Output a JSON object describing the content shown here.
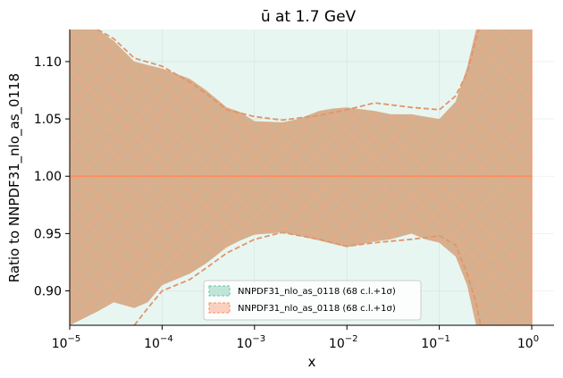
{
  "chart_data": {
    "type": "area",
    "title": "ū at 1.7 GeV",
    "xlabel": "x",
    "ylabel": "Ratio to NNPDF31_nlo_as_0118",
    "xscale": "log",
    "xlim": [
      1e-05,
      1.0
    ],
    "ylim": [
      0.87,
      1.128
    ],
    "x_ticks": [
      {
        "value": 1e-05,
        "base": "10",
        "exp": "−5"
      },
      {
        "value": 0.0001,
        "base": "10",
        "exp": "−4"
      },
      {
        "value": 0.001,
        "base": "10",
        "exp": "−3"
      },
      {
        "value": 0.01,
        "base": "10",
        "exp": "−2"
      },
      {
        "value": 0.1,
        "base": "10",
        "exp": "−1"
      },
      {
        "value": 1.0,
        "base": "10",
        "exp": "0"
      }
    ],
    "y_ticks": [
      "0.90",
      "0.95",
      "1.00",
      "1.05",
      "1.10"
    ],
    "y_tick_values": [
      0.9,
      0.95,
      1.0,
      1.05,
      1.1
    ],
    "grid": true,
    "legend_position": "lower-center",
    "series": [
      {
        "name": "NNPDF31_nlo_as_0118 (68 c.l.+1σ)",
        "color": "#66c2a5",
        "central": 1.0,
        "band_points": [
          {
            "x": 1e-05,
            "upper": 1.128,
            "lower": 0.87
          },
          {
            "x": 0.0001,
            "upper": 1.128,
            "lower": 0.87
          },
          {
            "x": 1.0,
            "upper": 1.128,
            "lower": 0.87
          }
        ],
        "note_hidden_behind": true
      },
      {
        "name": "NNPDF31_nlo_as_0118 (68 c.l.+1σ)",
        "color": "#fc8d62",
        "central": 1.0,
        "band_points": [
          {
            "x": 1e-05,
            "upper": 1.128,
            "lower": 0.87
          },
          {
            "x": 2e-05,
            "upper": 1.128,
            "lower": 0.882
          },
          {
            "x": 3e-05,
            "upper": 1.118,
            "lower": 0.89
          },
          {
            "x": 5e-05,
            "upper": 1.1,
            "lower": 0.885
          },
          {
            "x": 7e-05,
            "upper": 1.097,
            "lower": 0.89
          },
          {
            "x": 0.0001,
            "upper": 1.094,
            "lower": 0.905
          },
          {
            "x": 0.0002,
            "upper": 1.085,
            "lower": 0.915
          },
          {
            "x": 0.0003,
            "upper": 1.075,
            "lower": 0.924
          },
          {
            "x": 0.0005,
            "upper": 1.06,
            "lower": 0.938
          },
          {
            "x": 0.0007,
            "upper": 1.056,
            "lower": 0.944
          },
          {
            "x": 0.001,
            "upper": 1.048,
            "lower": 0.949
          },
          {
            "x": 0.002,
            "upper": 1.047,
            "lower": 0.951
          },
          {
            "x": 0.003,
            "upper": 1.05,
            "lower": 0.948
          },
          {
            "x": 0.005,
            "upper": 1.057,
            "lower": 0.944
          },
          {
            "x": 0.007,
            "upper": 1.059,
            "lower": 0.941
          },
          {
            "x": 0.01,
            "upper": 1.06,
            "lower": 0.938
          },
          {
            "x": 0.02,
            "upper": 1.057,
            "lower": 0.943
          },
          {
            "x": 0.03,
            "upper": 1.054,
            "lower": 0.945
          },
          {
            "x": 0.05,
            "upper": 1.054,
            "lower": 0.95
          },
          {
            "x": 0.07,
            "upper": 1.052,
            "lower": 0.945
          },
          {
            "x": 0.1,
            "upper": 1.05,
            "lower": 0.942
          },
          {
            "x": 0.15,
            "upper": 1.065,
            "lower": 0.93
          },
          {
            "x": 0.2,
            "upper": 1.095,
            "lower": 0.905
          },
          {
            "x": 0.25,
            "upper": 1.128,
            "lower": 0.87
          },
          {
            "x": 1.0,
            "upper": 1.128,
            "lower": 0.87
          }
        ],
        "dashed_upper": [
          {
            "x": 2e-05,
            "y": 1.128
          },
          {
            "x": 3e-05,
            "y": 1.12
          },
          {
            "x": 5e-05,
            "y": 1.103
          },
          {
            "x": 0.0001,
            "y": 1.096
          },
          {
            "x": 0.0002,
            "y": 1.082
          },
          {
            "x": 0.0003,
            "y": 1.072
          },
          {
            "x": 0.0005,
            "y": 1.058
          },
          {
            "x": 0.001,
            "y": 1.052
          },
          {
            "x": 0.002,
            "y": 1.049
          },
          {
            "x": 0.005,
            "y": 1.053
          },
          {
            "x": 0.01,
            "y": 1.058
          },
          {
            "x": 0.02,
            "y": 1.064
          },
          {
            "x": 0.05,
            "y": 1.06
          },
          {
            "x": 0.1,
            "y": 1.058
          },
          {
            "x": 0.15,
            "y": 1.07
          },
          {
            "x": 0.2,
            "y": 1.09
          },
          {
            "x": 0.25,
            "y": 1.12
          },
          {
            "x": 0.27,
            "y": 1.128
          }
        ],
        "dashed_lower": [
          {
            "x": 5e-05,
            "y": 0.87
          },
          {
            "x": 7e-05,
            "y": 0.885
          },
          {
            "x": 0.0001,
            "y": 0.9
          },
          {
            "x": 0.0002,
            "y": 0.91
          },
          {
            "x": 0.0003,
            "y": 0.92
          },
          {
            "x": 0.0005,
            "y": 0.933
          },
          {
            "x": 0.001,
            "y": 0.945
          },
          {
            "x": 0.002,
            "y": 0.951
          },
          {
            "x": 0.005,
            "y": 0.945
          },
          {
            "x": 0.01,
            "y": 0.939
          },
          {
            "x": 0.02,
            "y": 0.942
          },
          {
            "x": 0.05,
            "y": 0.945
          },
          {
            "x": 0.1,
            "y": 0.948
          },
          {
            "x": 0.15,
            "y": 0.94
          },
          {
            "x": 0.2,
            "y": 0.915
          },
          {
            "x": 0.25,
            "y": 0.89
          },
          {
            "x": 0.28,
            "y": 0.87
          }
        ]
      }
    ]
  }
}
